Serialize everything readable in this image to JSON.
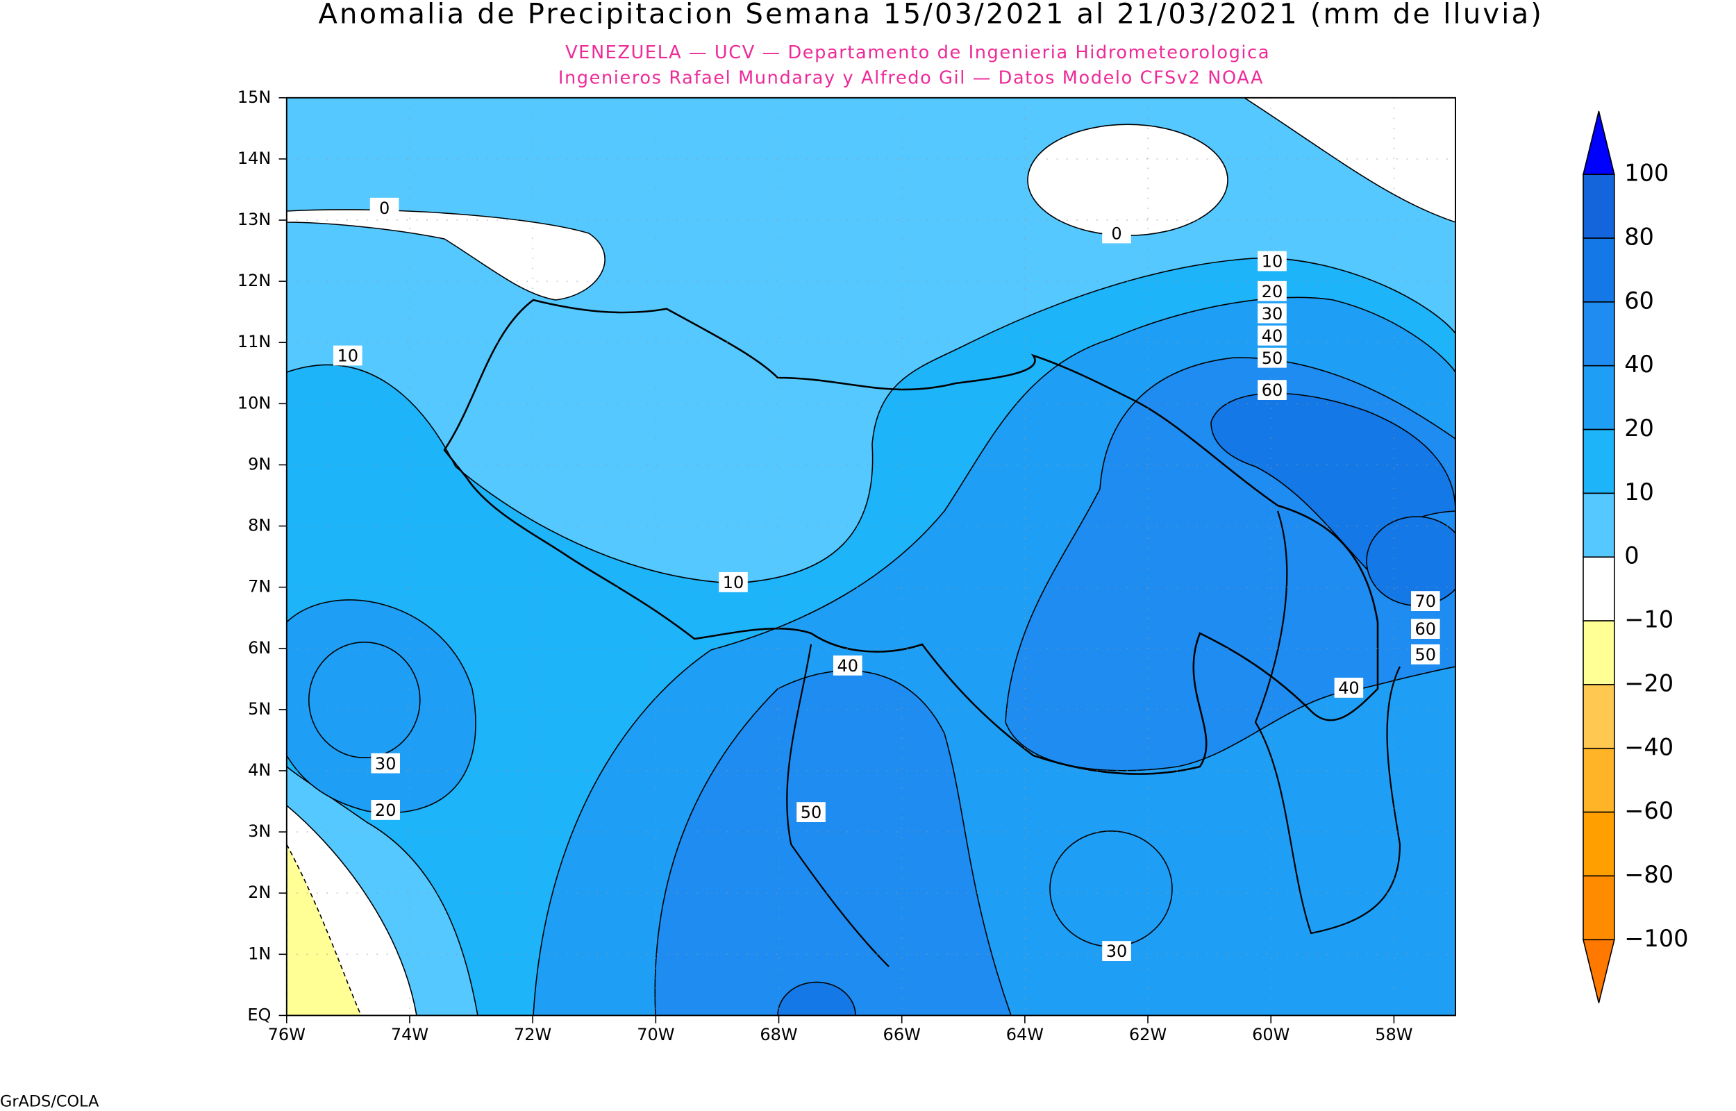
{
  "title": "Anomalia de Precipitacion Semana 15/03/2021 al 21/03/2021 (mm de lluvia)",
  "subtitle": [
    "VENEZUELA — UCV — Departamento de Ingenieria Hidrometeorologica",
    "Ingenieros Rafael Mundaray y Alfredo Gil — Datos Modelo CFSv2 NOAA"
  ],
  "map": {
    "lat_labels": [
      "15N",
      "14N",
      "13N",
      "12N",
      "11N",
      "10N",
      "9N",
      "8N",
      "7N",
      "6N",
      "5N",
      "4N",
      "3N",
      "2N",
      "1N",
      "EQ"
    ],
    "lon_labels": [
      "76W",
      "74W",
      "72W",
      "70W",
      "68W",
      "66W",
      "64W",
      "62W",
      "60W",
      "58W"
    ],
    "contour_labels": [
      "0",
      "0",
      "10",
      "10",
      "20",
      "30",
      "40",
      "50",
      "60",
      "10",
      "70",
      "60",
      "50",
      "40",
      "40",
      "30",
      "20",
      "50",
      "30"
    ]
  },
  "colorbar": {
    "labels": [
      "100",
      "80",
      "60",
      "40",
      "20",
      "10",
      "0",
      "−10",
      "−20",
      "−40",
      "−60",
      "−80",
      "−100"
    ],
    "colors": [
      "#0000ff",
      "#1464dc",
      "#1478e6",
      "#1e8cf0",
      "#1e9ff5",
      "#1eb4fa",
      "#54c8ff",
      "#ffffff",
      "#ffff96",
      "#ffc850",
      "#ffb428",
      "#ffa000",
      "#ff8c00",
      "#ff7800"
    ]
  },
  "footer": "GrADS/COLA"
}
